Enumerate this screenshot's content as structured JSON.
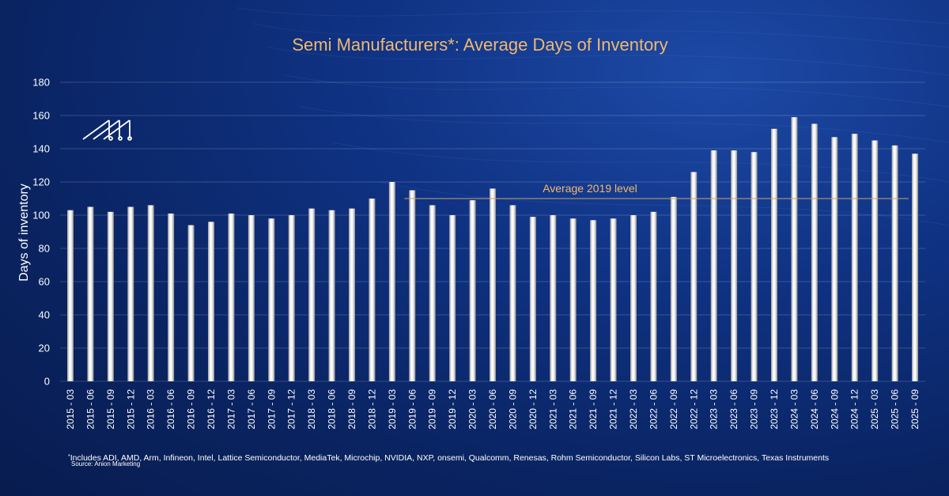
{
  "chart_data": {
    "type": "bar",
    "title": "Semi Manufacturers*: Average Days of Inventory",
    "ylabel": "Days of inventory",
    "xlabel": "",
    "ylim": [
      0,
      180
    ],
    "yticks": [
      0,
      20,
      40,
      60,
      80,
      100,
      120,
      140,
      160,
      180
    ],
    "grid": true,
    "categories": [
      "2015 - 03",
      "2015 - 06",
      "2015 - 09",
      "2015 - 12",
      "2016 - 03",
      "2016 - 06",
      "2016 - 09",
      "2016 - 12",
      "2017 - 03",
      "2017 - 06",
      "2017 - 09",
      "2017 - 12",
      "2018 - 03",
      "2018 - 06",
      "2018 - 09",
      "2018 - 12",
      "2019 - 03",
      "2019 - 06",
      "2019 - 09",
      "2019 - 12",
      "2020 - 03",
      "2020 - 06",
      "2020 - 09",
      "2020 - 12",
      "2021 - 03",
      "2021 - 06",
      "2021 - 09",
      "2021 - 12",
      "2022 - 03",
      "2022 - 06",
      "2022 - 09",
      "2022 - 12",
      "2023 - 03",
      "2023 - 06",
      "2023 - 09",
      "2023 - 12",
      "2024 - 03",
      "2024 - 06",
      "2024 - 09",
      "2024 - 12",
      "2025 - 03",
      "2025 - 06",
      "2025 - 09"
    ],
    "values": [
      103,
      105,
      102,
      105,
      106,
      101,
      94,
      96,
      101,
      100,
      98,
      100,
      104,
      103,
      104,
      110,
      120,
      115,
      106,
      100,
      109,
      116,
      106,
      99,
      100,
      98,
      97,
      98,
      100,
      102,
      111,
      126,
      139,
      139,
      138,
      152,
      159,
      155,
      147,
      149,
      145,
      142,
      137
    ],
    "reference_line": {
      "label": "Average 2019 level",
      "value": 110,
      "from": "2019 - 06",
      "to": "2025 - 09"
    },
    "colors": {
      "bar": "#e8e8e8",
      "title": "#f0b870",
      "reference": "#c8a66a",
      "background": "#0c2a6e"
    }
  },
  "footnote": {
    "marker": "*",
    "text": "Includes ADI, AMD, Arm, Infineon, Intel, Lattice Semiconductor, MediaTek, Microchip, NVIDIA, NXP, onsemi, Qualcomm, Renesas, Rohm Semiconductor, Silicon Labs, ST Microelectronics, Texas Instruments"
  },
  "source": "Source: Anion Marketing",
  "logo": {
    "icon": "anion-marketing-logo-icon"
  }
}
